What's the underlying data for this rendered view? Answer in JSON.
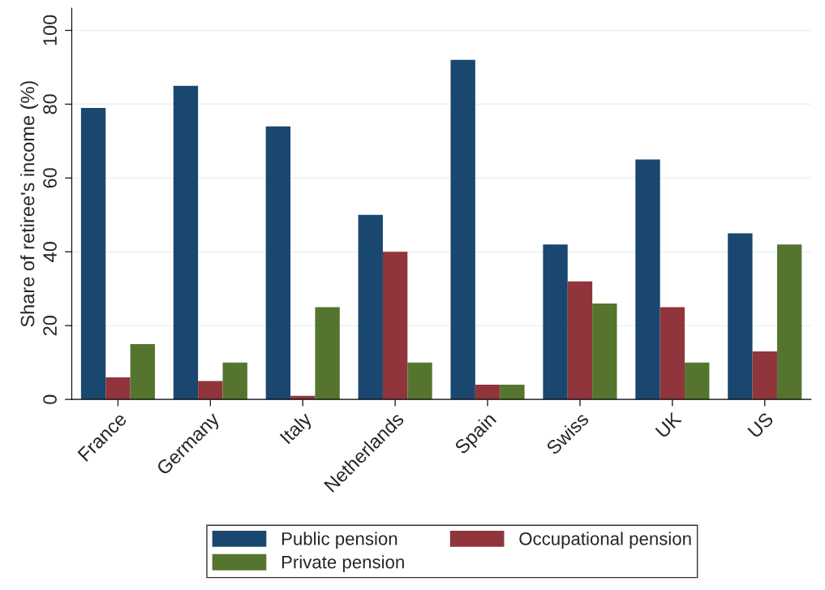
{
  "chart_data": {
    "type": "bar",
    "ylabel": "Share of retiree's income (%)",
    "categories": [
      "France",
      "Germany",
      "Italy",
      "Netherlands",
      "Spain",
      "Swiss",
      "UK",
      "US"
    ],
    "series": [
      {
        "name": "Public pension",
        "color": "#1a476f",
        "values": [
          79,
          85,
          74,
          50,
          92,
          42,
          65,
          45
        ]
      },
      {
        "name": "Occupational pension",
        "color": "#90353b",
        "values": [
          6,
          5,
          1,
          40,
          4,
          32,
          25,
          13
        ]
      },
      {
        "name": "Private pension",
        "color": "#55752f",
        "values": [
          15,
          10,
          25,
          10,
          4,
          26,
          10,
          42
        ]
      }
    ],
    "ylim": [
      0,
      106
    ],
    "yticks": [
      0,
      20,
      40,
      60,
      80,
      100
    ],
    "grid": "y",
    "legend": "bottom"
  }
}
